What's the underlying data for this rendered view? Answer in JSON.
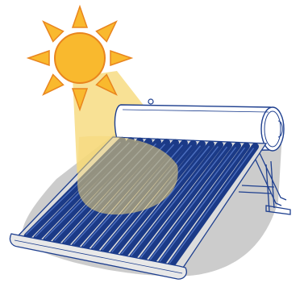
{
  "illustration": {
    "subject": "",
    "colors": {
      "sun_fill": "#F9B92E",
      "sun_outline": "#E9851E",
      "beam": "#F6D97A",
      "ground_shadow": "#C6C6C6",
      "tube_blue": "#1B3A87",
      "tube_highlight": "#4C6FBF",
      "frame_outline": "#1E3F8F",
      "tank_fill": "#FFFFFF"
    },
    "icons": [
      "sun-icon",
      "solar-water-heater-icon"
    ]
  }
}
